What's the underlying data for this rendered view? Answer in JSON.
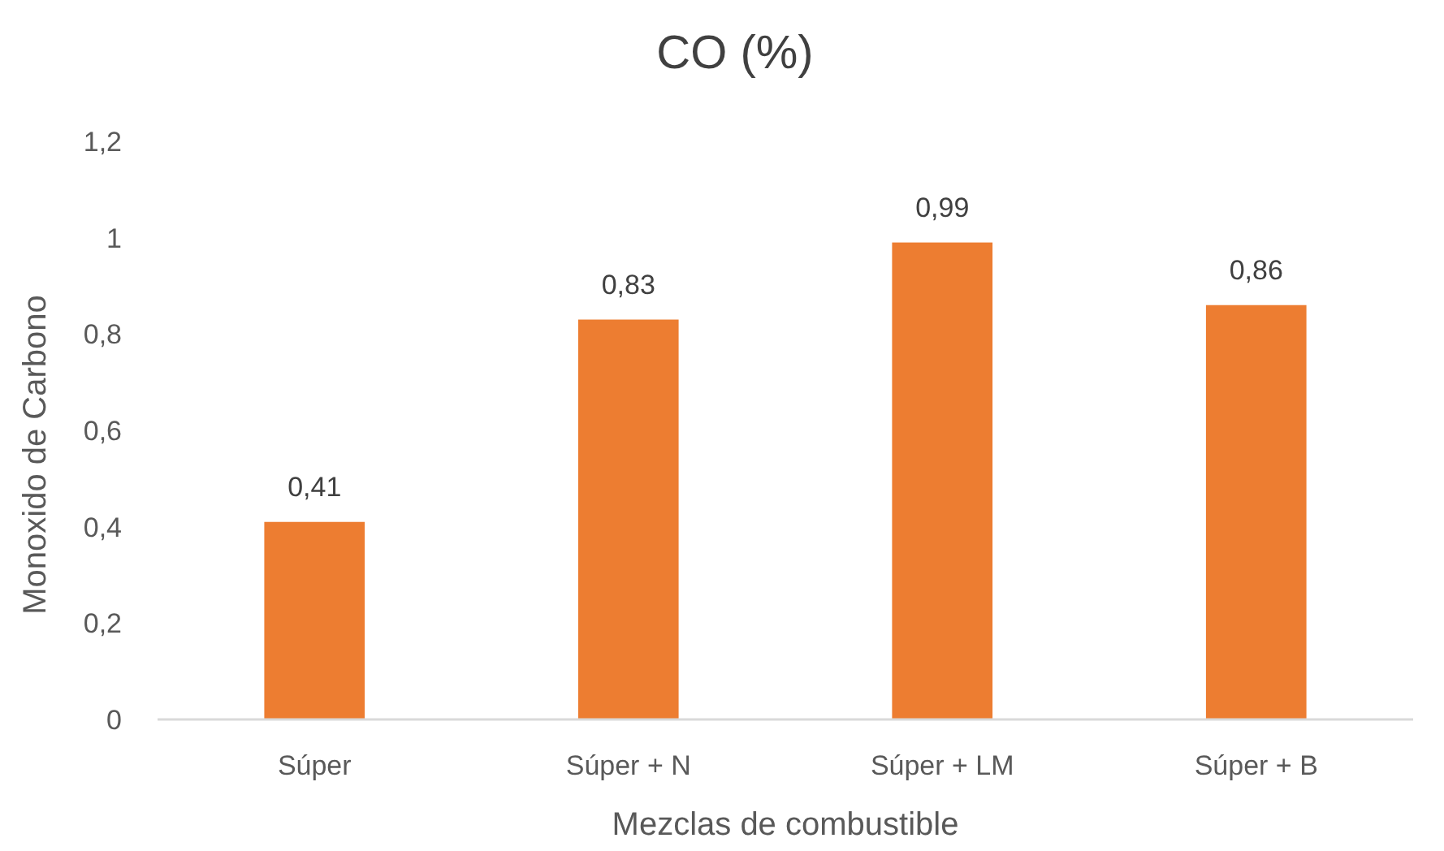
{
  "chart_data": {
    "type": "bar",
    "title": "CO (%)",
    "xlabel": "Mezclas de combustible",
    "ylabel": "Monoxido de Carbono",
    "categories": [
      "Súper",
      "Súper + N",
      "Súper + LM",
      "Súper + B"
    ],
    "values": [
      0.41,
      0.83,
      0.99,
      0.86
    ],
    "color": "#ed7d31",
    "value_labels": [
      "0,41",
      "0,83",
      "0,99",
      "0,86"
    ],
    "ylim": [
      0,
      1.2
    ],
    "yticks": [
      {
        "value": 0,
        "label": "0"
      },
      {
        "value": 0.2,
        "label": "0,2"
      },
      {
        "value": 0.4,
        "label": "0,4"
      },
      {
        "value": 0.6,
        "label": "0,6"
      },
      {
        "value": 0.8,
        "label": "0,8"
      },
      {
        "value": 1,
        "label": "1"
      },
      {
        "value": 1.2,
        "label": "1,2"
      }
    ]
  }
}
